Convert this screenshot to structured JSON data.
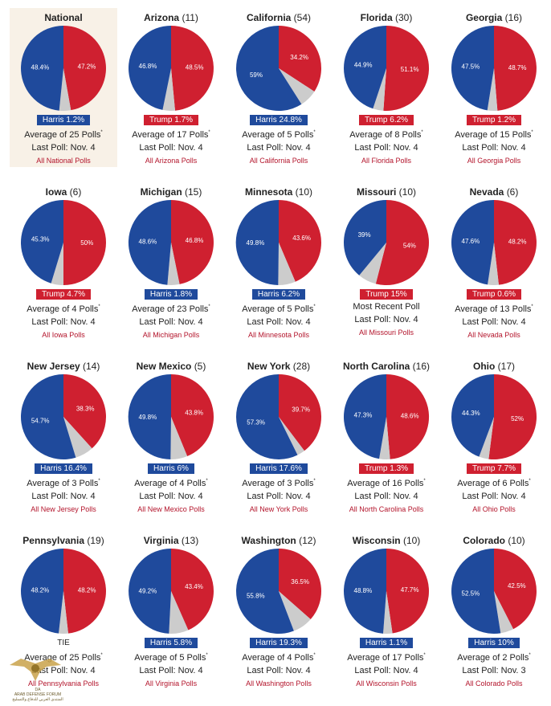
{
  "colors": {
    "harris": "#1f4a9c",
    "trump": "#cf2030",
    "other": "#cccccc"
  },
  "chart_data": {
    "type": "pie",
    "charts": [
      {
        "name": "National",
        "ev": "",
        "harris": 48.4,
        "trump": 47.2,
        "harris_label": "48.4%",
        "trump_label": "47.2%",
        "spread": "Harris 1.2%",
        "leader": "harris",
        "avg_prefix": "Average of 25 Polls",
        "avg_star": "*",
        "last_poll": "Last Poll: Nov. 4",
        "link": "All National Polls",
        "highlight": true
      },
      {
        "name": "Arizona",
        "ev": "(11)",
        "harris": 46.8,
        "trump": 48.5,
        "harris_label": "46.8%",
        "trump_label": "48.5%",
        "spread": "Trump 1.7%",
        "leader": "trump",
        "avg_prefix": "Average of 17 Polls",
        "avg_star": "*",
        "last_poll": "Last Poll: Nov. 4",
        "link": "All Arizona Polls"
      },
      {
        "name": "California",
        "ev": "(54)",
        "harris": 59,
        "trump": 34.2,
        "harris_label": "59%",
        "trump_label": "34.2%",
        "spread": "Harris 24.8%",
        "leader": "harris",
        "avg_prefix": "Average of 5 Polls",
        "avg_star": "*",
        "last_poll": "Last Poll: Nov. 4",
        "link": "All California Polls"
      },
      {
        "name": "Florida",
        "ev": "(30)",
        "harris": 44.9,
        "trump": 51.1,
        "harris_label": "44.9%",
        "trump_label": "51.1%",
        "spread": "Trump 6.2%",
        "leader": "trump",
        "avg_prefix": "Average of 8 Polls",
        "avg_star": "*",
        "last_poll": "Last Poll: Nov. 4",
        "link": "All Florida Polls"
      },
      {
        "name": "Georgia",
        "ev": "(16)",
        "harris": 47.5,
        "trump": 48.7,
        "harris_label": "47.5%",
        "trump_label": "48.7%",
        "spread": "Trump 1.2%",
        "leader": "trump",
        "avg_prefix": "Average of 15 Polls",
        "avg_star": "*",
        "last_poll": "Last Poll: Nov. 4",
        "link": "All Georgia Polls"
      },
      {
        "name": "Iowa",
        "ev": "(6)",
        "harris": 45.3,
        "trump": 50,
        "harris_label": "45.3%",
        "trump_label": "50%",
        "spread": "Trump 4.7%",
        "leader": "trump",
        "avg_prefix": "Average of 4 Polls",
        "avg_star": "*",
        "last_poll": "Last Poll: Nov. 4",
        "link": "All Iowa Polls"
      },
      {
        "name": "Michigan",
        "ev": "(15)",
        "harris": 48.6,
        "trump": 46.8,
        "harris_label": "48.6%",
        "trump_label": "46.8%",
        "spread": "Harris 1.8%",
        "leader": "harris",
        "avg_prefix": "Average of 23 Polls",
        "avg_star": "*",
        "last_poll": "Last Poll: Nov. 4",
        "link": "All Michigan Polls"
      },
      {
        "name": "Minnesota",
        "ev": "(10)",
        "harris": 49.8,
        "trump": 43.6,
        "harris_label": "49.8%",
        "trump_label": "43.6%",
        "spread": "Harris 6.2%",
        "leader": "harris",
        "avg_prefix": "Average of 5 Polls",
        "avg_star": "*",
        "last_poll": "Last Poll: Nov. 4",
        "link": "All Minnesota Polls"
      },
      {
        "name": "Missouri",
        "ev": "(10)",
        "harris": 39,
        "trump": 54,
        "harris_label": "39%",
        "trump_label": "54%",
        "spread": "Trump 15%",
        "leader": "trump",
        "avg_prefix": "Most Recent Poll",
        "avg_star": "",
        "last_poll": "Last Poll: Nov. 4",
        "link": "All Missouri Polls"
      },
      {
        "name": "Nevada",
        "ev": "(6)",
        "harris": 47.6,
        "trump": 48.2,
        "harris_label": "47.6%",
        "trump_label": "48.2%",
        "spread": "Trump 0.6%",
        "leader": "trump",
        "avg_prefix": "Average of 13 Polls",
        "avg_star": "*",
        "last_poll": "Last Poll: Nov. 4",
        "link": "All Nevada Polls"
      },
      {
        "name": "New Jersey",
        "ev": "(14)",
        "harris": 54.7,
        "trump": 38.3,
        "harris_label": "54.7%",
        "trump_label": "38.3%",
        "spread": "Harris 16.4%",
        "leader": "harris",
        "avg_prefix": "Average of 3 Polls",
        "avg_star": "*",
        "last_poll": "Last Poll: Nov. 4",
        "link": "All New Jersey Polls"
      },
      {
        "name": "New Mexico",
        "ev": "(5)",
        "harris": 49.8,
        "trump": 43.8,
        "harris_label": "49.8%",
        "trump_label": "43.8%",
        "spread": "Harris 6%",
        "leader": "harris",
        "avg_prefix": "Average of 4 Polls",
        "avg_star": "*",
        "last_poll": "Last Poll: Nov. 4",
        "link": "All New Mexico Polls"
      },
      {
        "name": "New York",
        "ev": "(28)",
        "harris": 57.3,
        "trump": 39.7,
        "harris_label": "57.3%",
        "trump_label": "39.7%",
        "spread": "Harris 17.6%",
        "leader": "harris",
        "avg_prefix": "Average of 3 Polls",
        "avg_star": "*",
        "last_poll": "Last Poll: Nov. 4",
        "link": "All New York Polls"
      },
      {
        "name": "North Carolina",
        "ev": "(16)",
        "harris": 47.3,
        "trump": 48.6,
        "harris_label": "47.3%",
        "trump_label": "48.6%",
        "spread": "Trump 1.3%",
        "leader": "trump",
        "avg_prefix": "Average of 16 Polls",
        "avg_star": "*",
        "last_poll": "Last Poll: Nov. 4",
        "link": "All North Carolina Polls"
      },
      {
        "name": "Ohio",
        "ev": "(17)",
        "harris": 44.3,
        "trump": 52,
        "harris_label": "44.3%",
        "trump_label": "52%",
        "spread": "Trump 7.7%",
        "leader": "trump",
        "avg_prefix": "Average of 6 Polls",
        "avg_star": "*",
        "last_poll": "Last Poll: Nov. 4",
        "link": "All Ohio Polls"
      },
      {
        "name": "Pennsylvania",
        "ev": "(19)",
        "harris": 48.2,
        "trump": 48.2,
        "harris_label": "48.2%",
        "trump_label": "48.2%",
        "spread": "TIE",
        "leader": "tie",
        "avg_prefix": "Average of 25 Polls",
        "avg_star": "*",
        "last_poll": "Last Poll: Nov. 4",
        "link": "All Pennsylvania Polls"
      },
      {
        "name": "Virginia",
        "ev": "(13)",
        "harris": 49.2,
        "trump": 43.4,
        "harris_label": "49.2%",
        "trump_label": "43.4%",
        "spread": "Harris 5.8%",
        "leader": "harris",
        "avg_prefix": "Average of 5 Polls",
        "avg_star": "*",
        "last_poll": "Last Poll: Nov. 4",
        "link": "All Virginia Polls"
      },
      {
        "name": "Washington",
        "ev": "(12)",
        "harris": 55.8,
        "trump": 36.5,
        "harris_label": "55.8%",
        "trump_label": "36.5%",
        "spread": "Harris 19.3%",
        "leader": "harris",
        "avg_prefix": "Average of 4 Polls",
        "avg_star": "*",
        "last_poll": "Last Poll: Nov. 4",
        "link": "All Washington Polls"
      },
      {
        "name": "Wisconsin",
        "ev": "(10)",
        "harris": 48.8,
        "trump": 47.7,
        "harris_label": "48.8%",
        "trump_label": "47.7%",
        "spread": "Harris 1.1%",
        "leader": "harris",
        "avg_prefix": "Average of 17 Polls",
        "avg_star": "*",
        "last_poll": "Last Poll: Nov. 4",
        "link": "All Wisconsin Polls"
      },
      {
        "name": "Colorado",
        "ev": "(10)",
        "harris": 52.5,
        "trump": 42.5,
        "harris_label": "52.5%",
        "trump_label": "42.5%",
        "spread": "Harris 10%",
        "leader": "harris",
        "avg_prefix": "Average of 2 Polls",
        "avg_star": "*",
        "last_poll": "Last Poll: Nov. 3",
        "link": "All Colorado Polls"
      }
    ]
  },
  "watermark": {
    "logo_text": "ARAB DEFENSE FORUM",
    "logo_abbrev": "DA",
    "logo_arabic": "المنتدى العربي للدفاع والتسليح"
  }
}
